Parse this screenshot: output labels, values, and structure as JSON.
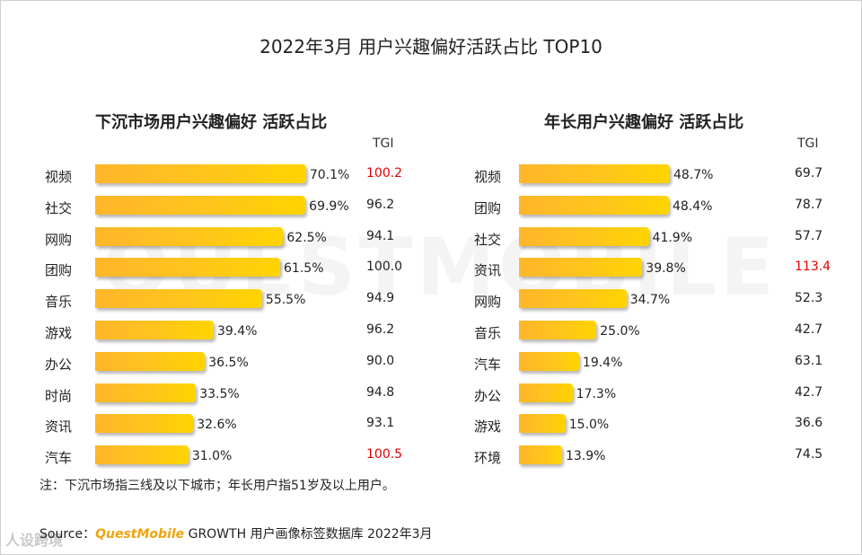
{
  "title": "2022年3月 用户兴趣偏好活跃占比 TOP10",
  "watermark": "QUESTMOBILE",
  "corner_logo": "人设跨境",
  "note": "注：下沉市场指三线及以下城市；年长用户指51岁及以上用户。",
  "source": {
    "prefix": "Source：",
    "brand": "QuestMobile",
    "rest": " GROWTH 用户画像标签数据库 2022年3月"
  },
  "chart_data": [
    {
      "type": "bar",
      "orientation": "horizontal",
      "title": "下沉市场用户兴趣偏好 活跃占比",
      "tgi_header": "TGI",
      "unit": "%",
      "xlim": [
        0,
        100
      ],
      "highlight_color": "#e00000",
      "bar_color": "#ffc51c",
      "categories": [
        "视频",
        "社交",
        "网购",
        "团购",
        "音乐",
        "游戏",
        "办公",
        "时尚",
        "资讯",
        "汽车"
      ],
      "values": [
        70.1,
        69.9,
        62.5,
        61.5,
        55.5,
        39.4,
        36.5,
        33.5,
        32.6,
        31.0
      ],
      "labels": [
        "70.1%",
        "69.9%",
        "62.5%",
        "61.5%",
        "55.5%",
        "39.4%",
        "36.5%",
        "33.5%",
        "32.6%",
        "31.0%"
      ],
      "tgi": [
        "100.2",
        "96.2",
        "94.1",
        "100.0",
        "94.9",
        "96.2",
        "90.0",
        "94.8",
        "93.1",
        "100.5"
      ],
      "tgi_highlight": [
        true,
        false,
        false,
        false,
        false,
        false,
        false,
        false,
        false,
        true
      ]
    },
    {
      "type": "bar",
      "orientation": "horizontal",
      "title": "年长用户兴趣偏好 活跃占比",
      "tgi_header": "TGI",
      "unit": "%",
      "xlim": [
        0,
        100
      ],
      "highlight_color": "#e00000",
      "bar_color": "#ffc51c",
      "categories": [
        "视频",
        "团购",
        "社交",
        "资讯",
        "网购",
        "音乐",
        "汽车",
        "办公",
        "游戏",
        "环境"
      ],
      "values": [
        48.7,
        48.4,
        41.9,
        39.8,
        34.7,
        25.0,
        19.4,
        17.3,
        15.0,
        13.9
      ],
      "labels": [
        "48.7%",
        "48.4%",
        "41.9%",
        "39.8%",
        "34.7%",
        "25.0%",
        "19.4%",
        "17.3%",
        "15.0%",
        "13.9%"
      ],
      "tgi": [
        "69.7",
        "78.7",
        "57.7",
        "113.4",
        "52.3",
        "42.7",
        "63.1",
        "42.7",
        "36.6",
        "74.5"
      ],
      "tgi_highlight": [
        false,
        false,
        false,
        true,
        false,
        false,
        false,
        false,
        false,
        false
      ]
    }
  ]
}
